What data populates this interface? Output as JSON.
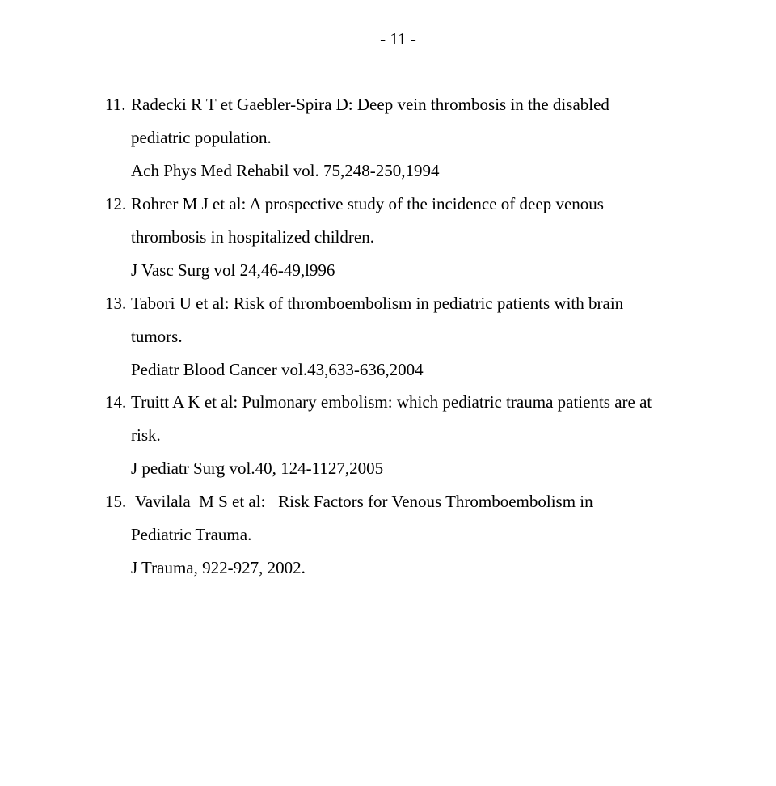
{
  "page_number": "- 11 -",
  "font": {
    "family": "Times New Roman",
    "size_pt": 16,
    "color": "#000000"
  },
  "background_color": "#ffffff",
  "references": [
    {
      "num": "11.",
      "text_line1": "Radecki R T et Gaebler-Spira D: Deep vein thrombosis in the disabled",
      "text_line2": "pediatric population.",
      "text_line3": "Ach Phys Med Rehabil vol. 75,248-250,1994"
    },
    {
      "num": "12.",
      "text_line1": "Rohrer M J et al: A prospective study of the incidence of deep venous",
      "text_line2": "thrombosis in hospitalized children.",
      "text_line3": "J Vasc Surg vol 24,46-49,l996"
    },
    {
      "num": "13.",
      "text_line1": "Tabori U et al: Risk of thromboembolism in pediatric patients with brain",
      "text_line2": "tumors.",
      "text_line3": "Pediatr Blood Cancer vol.43,633-636,2004"
    },
    {
      "num": "14.",
      "text_line1": "Truitt  A K et al: Pulmonary embolism: which pediatric trauma patients are at",
      "text_line2": "risk.",
      "text_line3": "J pediatr Surg vol.40, 124-1127,2005"
    },
    {
      "num": "15.",
      "text_line1": " Vavilala  M S et al:   Risk Factors for Venous Thromboembolism in",
      "text_line2": "Pediatric Trauma.",
      "text_line3": "J Trauma,  922-927, 2002."
    }
  ]
}
